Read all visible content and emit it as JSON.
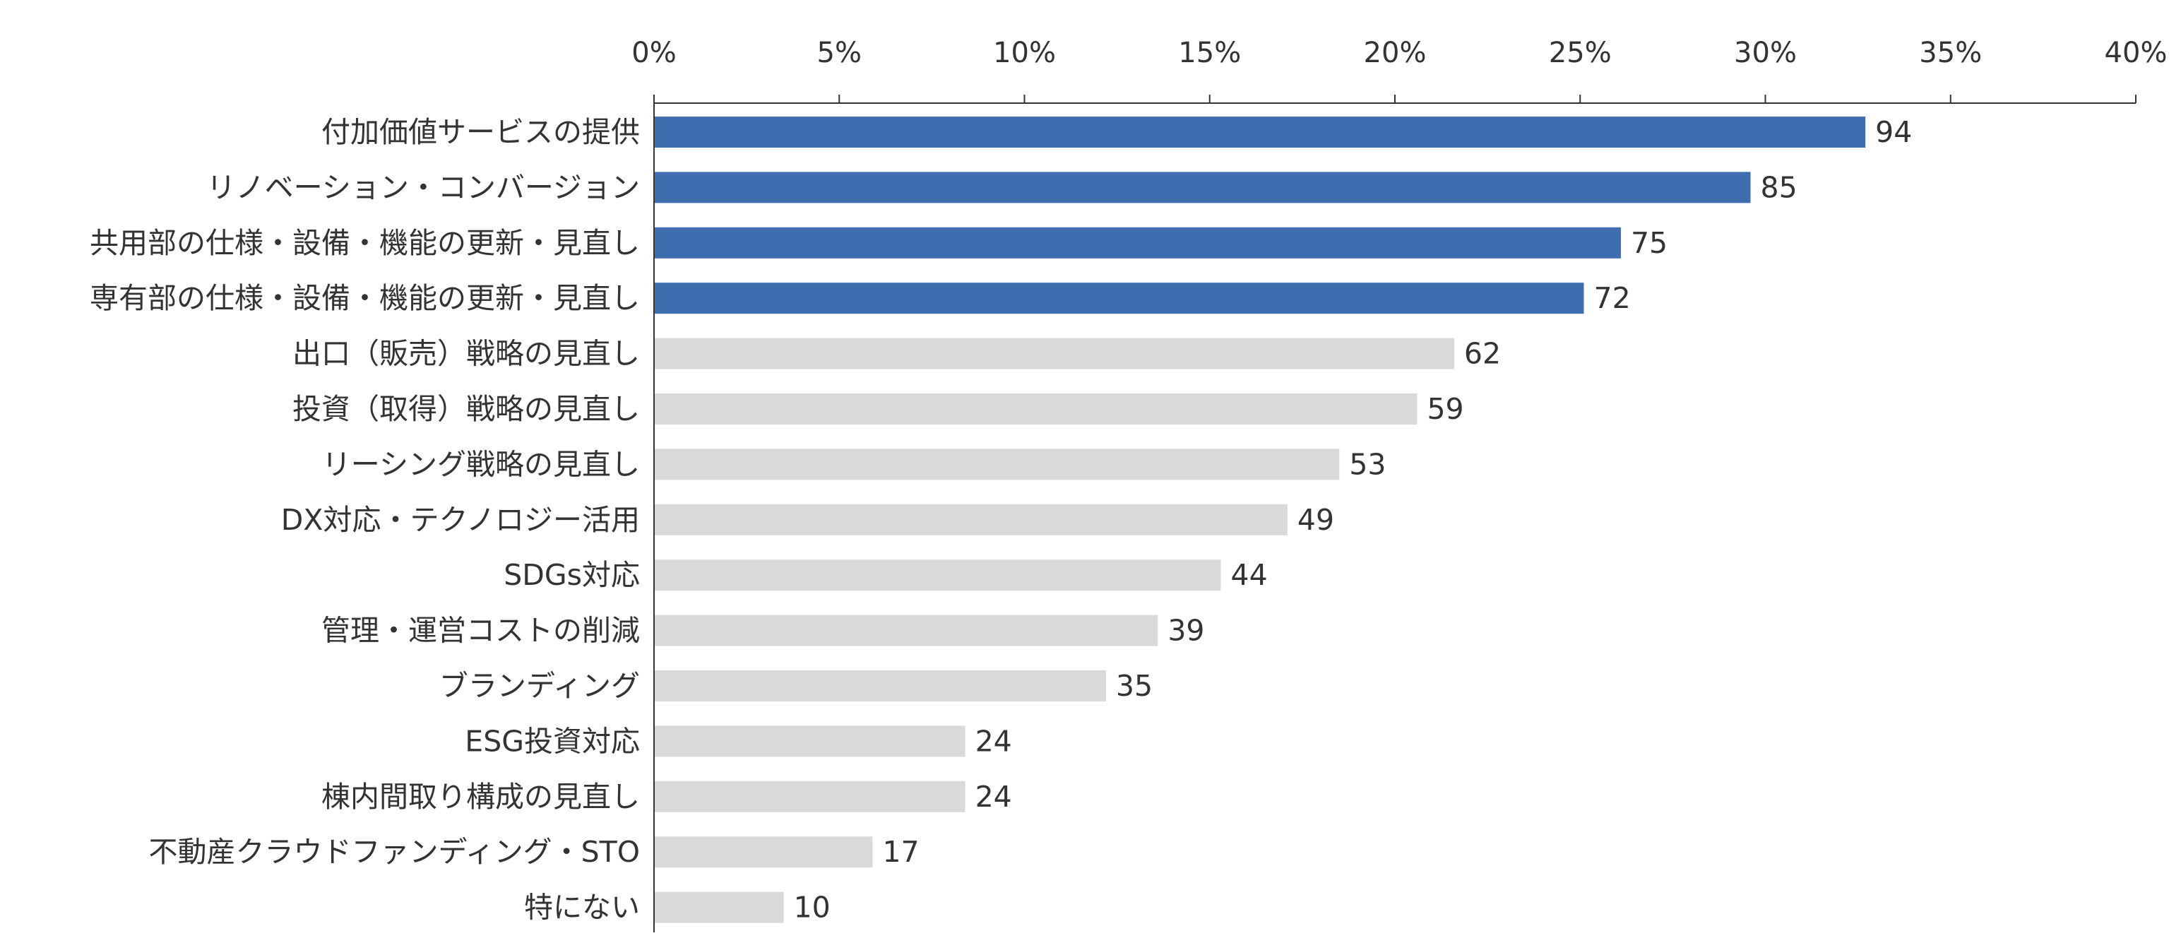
{
  "chart_data": {
    "type": "bar",
    "orientation": "horizontal",
    "title": "",
    "xlabel": "",
    "ylabel": "",
    "x_ticks": [
      "0%",
      "5%",
      "10%",
      "15%",
      "20%",
      "25%",
      "30%",
      "35%",
      "40%"
    ],
    "xlim": [
      0,
      40
    ],
    "grid": false,
    "legend": "none",
    "colors": {
      "highlight": "#3f6db0",
      "normal": "#d9d9d9",
      "axis": "#333333",
      "text": "#333333"
    },
    "bars": [
      {
        "label": "付加価値サービスの提供",
        "count": "94",
        "percent": 32.7,
        "highlight": true
      },
      {
        "label": "リノベーション・コンバージョン",
        "count": "85",
        "percent": 29.6,
        "highlight": true
      },
      {
        "label": "共用部の仕様・設備・機能の更新・見直し",
        "count": "75",
        "percent": 26.1,
        "highlight": true
      },
      {
        "label": "専有部の仕様・設備・機能の更新・見直し",
        "count": "72",
        "percent": 25.1,
        "highlight": true
      },
      {
        "label": "出口（販売）戦略の見直し",
        "count": "62",
        "percent": 21.6,
        "highlight": false
      },
      {
        "label": "投資（取得）戦略の見直し",
        "count": "59",
        "percent": 20.6,
        "highlight": false
      },
      {
        "label": "リーシング戦略の見直し",
        "count": "53",
        "percent": 18.5,
        "highlight": false
      },
      {
        "label": "DX対応・テクノロジー活用",
        "count": "49",
        "percent": 17.1,
        "highlight": false
      },
      {
        "label": "SDGs対応",
        "count": "44",
        "percent": 15.3,
        "highlight": false
      },
      {
        "label": "管理・運営コストの削減",
        "count": "39",
        "percent": 13.6,
        "highlight": false
      },
      {
        "label": "ブランディング",
        "count": "35",
        "percent": 12.2,
        "highlight": false
      },
      {
        "label": "ESG投資対応",
        "count": "24",
        "percent": 8.4,
        "highlight": false
      },
      {
        "label": "棟内間取り構成の見直し",
        "count": "24",
        "percent": 8.4,
        "highlight": false
      },
      {
        "label": "不動産クラウドファンディング・STO",
        "count": "17",
        "percent": 5.9,
        "highlight": false
      },
      {
        "label": "特にない",
        "count": "10",
        "percent": 3.5,
        "highlight": false
      }
    ]
  }
}
